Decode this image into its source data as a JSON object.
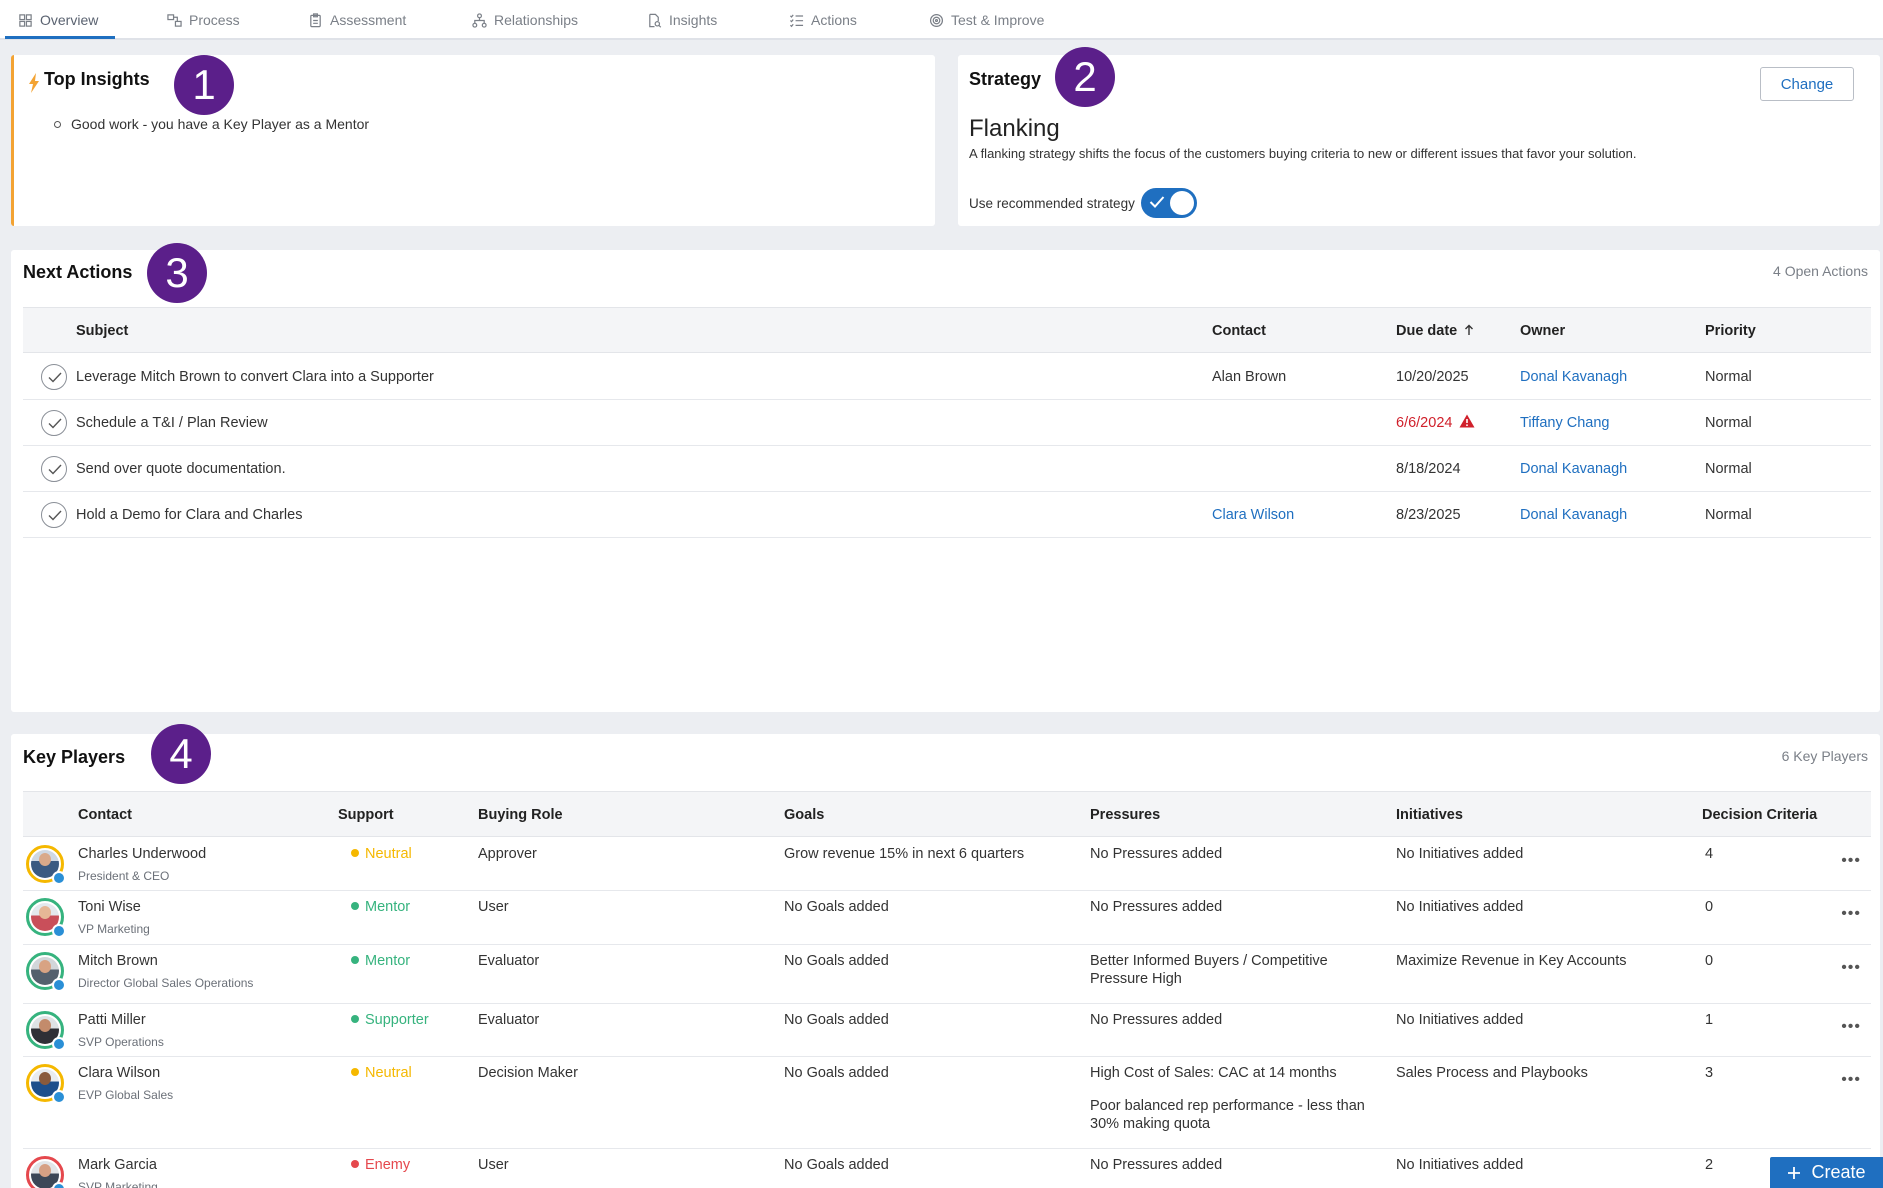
{
  "tabs": [
    {
      "label": "Overview",
      "icon": "grid-icon"
    },
    {
      "label": "Process",
      "icon": "process-icon"
    },
    {
      "label": "Assessment",
      "icon": "clipboard-icon"
    },
    {
      "label": "Relationships",
      "icon": "hierarchy-icon"
    },
    {
      "label": "Insights",
      "icon": "document-search-icon"
    },
    {
      "label": "Actions",
      "icon": "list-check-icon"
    },
    {
      "label": "Test & Improve",
      "icon": "target-icon"
    }
  ],
  "badges": [
    "1",
    "2",
    "3",
    "4"
  ],
  "insights": {
    "title": "Top Insights",
    "items": [
      "Good work - you have a Key Player as a Mentor"
    ]
  },
  "strategy": {
    "title": "Strategy",
    "change_label": "Change",
    "name": "Flanking",
    "description": "A flanking strategy shifts the focus of the customers buying criteria to new or different issues that favor your solution.",
    "toggle_label": "Use recommended strategy",
    "toggle_on": true
  },
  "actions": {
    "title": "Next Actions",
    "count_label": "4 Open Actions",
    "columns": {
      "subject": "Subject",
      "contact": "Contact",
      "due": "Due date",
      "owner": "Owner",
      "priority": "Priority"
    },
    "rows": [
      {
        "subject": "Leverage Mitch Brown to convert Clara into a Supporter",
        "contact": "Alan Brown",
        "due": "10/20/2025",
        "owner": "Donal Kavanagh",
        "priority": "Normal"
      },
      {
        "subject": "Schedule a T&I / Plan Review",
        "contact": "",
        "due": "6/6/2024",
        "owner": "Tiffany Chang",
        "priority": "Normal"
      },
      {
        "subject": "Send over quote documentation.",
        "contact": "",
        "due": "8/18/2024",
        "owner": "Donal Kavanagh",
        "priority": "Normal"
      },
      {
        "subject": "Hold a Demo for Clara and Charles",
        "contact": "Clara Wilson",
        "due": "8/23/2025",
        "owner": "Donal Kavanagh",
        "priority": "Normal"
      }
    ]
  },
  "players": {
    "title": "Key Players",
    "count_label": "6 Key Players",
    "columns": {
      "contact": "Contact",
      "support": "Support",
      "role": "Buying Role",
      "goals": "Goals",
      "pressures": "Pressures",
      "initiatives": "Initiatives",
      "criteria": "Decision Criteria"
    },
    "rows": [
      {
        "name": "Charles Underwood",
        "title": "President & CEO",
        "support": "Neutral",
        "support_color": "#f5b800",
        "role": "Approver",
        "goals": "Grow revenue 15% in next 6 quarters",
        "pressures": [
          "No Pressures added"
        ],
        "initiatives": "No Initiatives added",
        "criteria": "4"
      },
      {
        "name": "Toni Wise",
        "title": "VP Marketing",
        "support": "Mentor",
        "support_color": "#36b37e",
        "role": "User",
        "goals": "No Goals added",
        "pressures": [
          "No Pressures added"
        ],
        "initiatives": "No Initiatives added",
        "criteria": "0"
      },
      {
        "name": "Mitch Brown",
        "title": "Director Global Sales Operations",
        "support": "Mentor",
        "support_color": "#36b37e",
        "role": "Evaluator",
        "goals": "No Goals added",
        "pressures": [
          "Better Informed Buyers / Competitive Pressure High"
        ],
        "initiatives": "Maximize Revenue in Key Accounts",
        "criteria": "0"
      },
      {
        "name": "Patti Miller",
        "title": "SVP Operations",
        "support": "Supporter",
        "support_color": "#36b37e",
        "role": "Evaluator",
        "goals": "No Goals added",
        "pressures": [
          "No Pressures added"
        ],
        "initiatives": "No Initiatives added",
        "criteria": "1"
      },
      {
        "name": "Clara Wilson",
        "title": "EVP Global Sales",
        "support": "Neutral",
        "support_color": "#f5b800",
        "role": "Decision Maker",
        "goals": "No Goals added",
        "pressures": [
          "High Cost of Sales: CAC at 14 months",
          "Poor balanced rep performance - less than 30% making quota"
        ],
        "initiatives": "Sales Process and Playbooks",
        "criteria": "3"
      },
      {
        "name": "Mark Garcia",
        "title": "SVP Marketing",
        "support": "Enemy",
        "support_color": "#e5484d",
        "role": "User",
        "goals": "No Goals added",
        "pressures": [
          "No Pressures added"
        ],
        "initiatives": "No Initiatives added",
        "criteria": "2"
      }
    ]
  },
  "create_label": "Create"
}
